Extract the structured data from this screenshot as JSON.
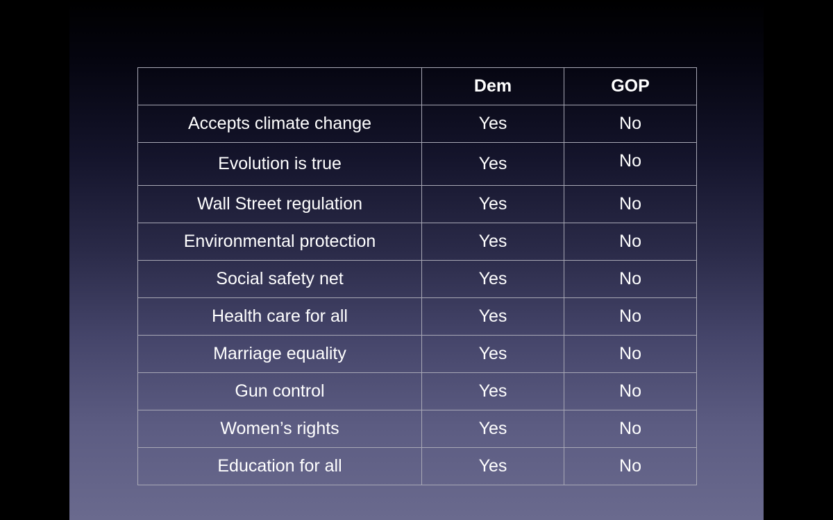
{
  "table": {
    "headers": [
      "",
      "Dem",
      "GOP"
    ],
    "rows": [
      {
        "issue": "Accepts climate change",
        "dem": "Yes",
        "gop": "No"
      },
      {
        "issue": "Evolution is true",
        "dem": "Yes",
        "gop": "No"
      },
      {
        "issue": "Wall Street regulation",
        "dem": "Yes",
        "gop": "No"
      },
      {
        "issue": "Environmental protection",
        "dem": "Yes",
        "gop": "No"
      },
      {
        "issue": "Social safety net",
        "dem": "Yes",
        "gop": "No"
      },
      {
        "issue": "Health care for all",
        "dem": "Yes",
        "gop": "No"
      },
      {
        "issue": "Marriage equality",
        "dem": "Yes",
        "gop": "No"
      },
      {
        "issue": "Gun control",
        "dem": "Yes",
        "gop": "No"
      },
      {
        "issue": "Women’s rights",
        "dem": "Yes",
        "gop": "No"
      },
      {
        "issue": "Education for all",
        "dem": "Yes",
        "gop": "No"
      }
    ]
  },
  "colors": {
    "background": "#000000",
    "gradient_bottom": "#6a6a8e",
    "text": "#ffffff",
    "border": "#a9a9b6"
  }
}
